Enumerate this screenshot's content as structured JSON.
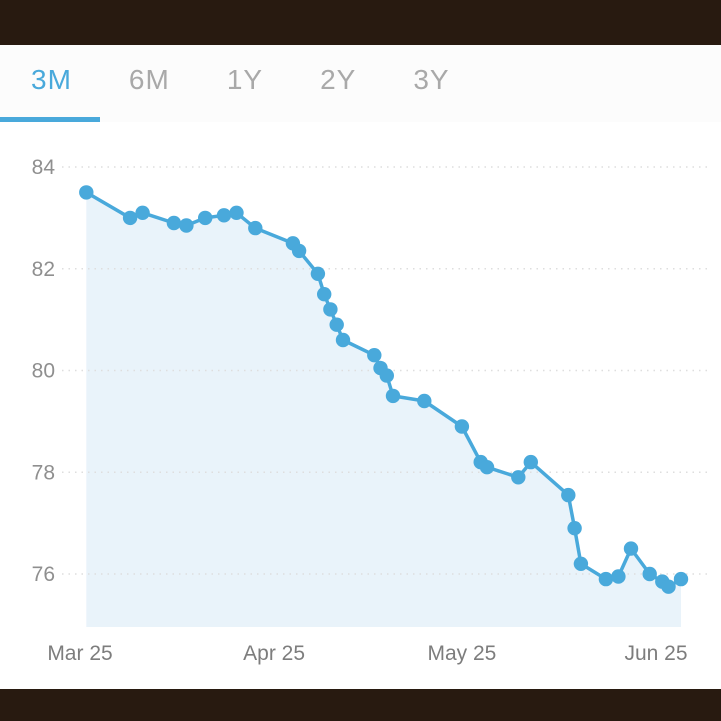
{
  "colors": {
    "frame": "#281a10",
    "accent_blue": "#49a9db",
    "tab_inactive": "#a9a9a9",
    "tab_bar_background": "#fcfcfc",
    "axis_label": "#8f8f8f",
    "x_label": "#7d7d7d",
    "area_fill": "#e9f3fa",
    "gridline": "#dedede",
    "background": "#ffffff"
  },
  "tabs": {
    "items": [
      {
        "label": "3M",
        "active": true
      },
      {
        "label": "6M",
        "active": false
      },
      {
        "label": "1Y",
        "active": false
      },
      {
        "label": "2Y",
        "active": false
      },
      {
        "label": "3Y",
        "active": false
      }
    ]
  },
  "chart_data": {
    "type": "line",
    "title": "",
    "xlabel": "",
    "ylabel": "",
    "x_unit": "days since Mar 25",
    "series": [
      {
        "name": "value",
        "points": [
          [
            1,
            83.5
          ],
          [
            8,
            83.0
          ],
          [
            10,
            83.1
          ],
          [
            15,
            82.9
          ],
          [
            17,
            82.85
          ],
          [
            20,
            83.0
          ],
          [
            23,
            83.05
          ],
          [
            25,
            83.1
          ],
          [
            28,
            82.8
          ],
          [
            34,
            82.5
          ],
          [
            35,
            82.35
          ],
          [
            38,
            81.9
          ],
          [
            39,
            81.5
          ],
          [
            40,
            81.2
          ],
          [
            41,
            80.9
          ],
          [
            42,
            80.6
          ],
          [
            47,
            80.3
          ],
          [
            48,
            80.05
          ],
          [
            49,
            79.9
          ],
          [
            50,
            79.5
          ],
          [
            55,
            79.4
          ],
          [
            61,
            78.9
          ],
          [
            64,
            78.2
          ],
          [
            65,
            78.1
          ],
          [
            70,
            77.9
          ],
          [
            72,
            78.2
          ],
          [
            78,
            77.55
          ],
          [
            79,
            76.9
          ],
          [
            80,
            76.2
          ],
          [
            84,
            75.9
          ],
          [
            86,
            75.95
          ],
          [
            88,
            76.5
          ],
          [
            91,
            76.0
          ],
          [
            93,
            75.85
          ],
          [
            94,
            75.75
          ],
          [
            96,
            75.9
          ]
        ]
      }
    ],
    "x_ticks": [
      {
        "day": 0,
        "label": "Mar 25"
      },
      {
        "day": 31,
        "label": "Apr 25"
      },
      {
        "day": 61,
        "label": "May 25"
      },
      {
        "day": 92,
        "label": "Jun 25"
      }
    ],
    "y_ticks": [
      84,
      82,
      80,
      78,
      76
    ],
    "ylim": [
      75.3,
      84.35
    ],
    "xlim_days": [
      -3,
      98
    ],
    "grid": "dotted-horizontal",
    "area": true,
    "marker": "circle",
    "legend": "none"
  }
}
